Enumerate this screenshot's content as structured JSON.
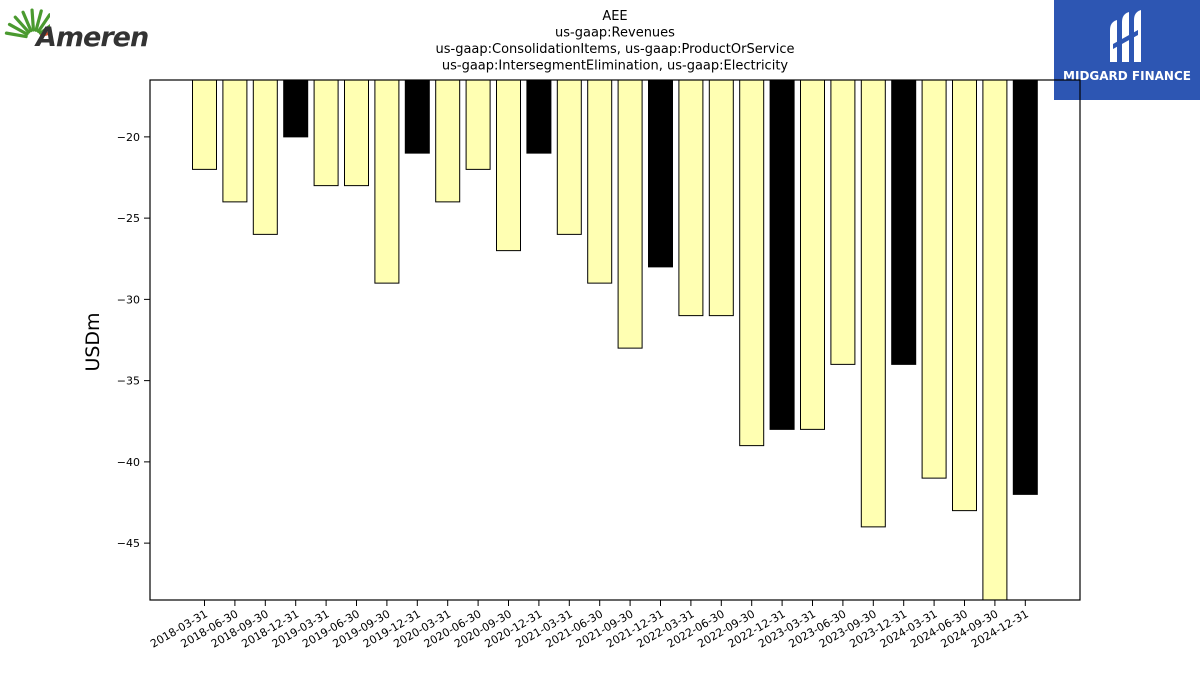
{
  "brand": {
    "company_logo": {
      "name": "Ameren",
      "icon": "ameren-sunburst-icon",
      "accent": "#4a9a2f"
    },
    "publisher_logo": {
      "name": "MIDGARD FINANCE",
      "icon": "midgard-mark-icon",
      "background": "#2d56b3"
    }
  },
  "chart_data": {
    "type": "bar",
    "title_lines": [
      "AEE",
      "us-gaap:Revenues",
      "us-gaap:ConsolidationItems, us-gaap:ProductOrService",
      "us-gaap:IntersegmentElimination, us-gaap:Electricity"
    ],
    "xlabel": "",
    "ylabel": "USDm",
    "ylim": [
      -48.5,
      -16.5
    ],
    "yticks": [
      -20,
      -25,
      -30,
      -35,
      -40,
      -45
    ],
    "grid": false,
    "legend": "none",
    "colors": {
      "quarter": "#ffffb2",
      "year_end": "#000000",
      "edge": "#000000"
    },
    "categories": [
      "2018-03-31",
      "2018-06-30",
      "2018-09-30",
      "2018-12-31",
      "2019-03-31",
      "2019-06-30",
      "2019-09-30",
      "2019-12-31",
      "2020-03-31",
      "2020-06-30",
      "2020-09-30",
      "2020-12-31",
      "2021-03-31",
      "2021-06-30",
      "2021-09-30",
      "2021-12-31",
      "2022-03-31",
      "2022-06-30",
      "2022-09-30",
      "2022-12-31",
      "2023-03-31",
      "2023-06-30",
      "2023-09-30",
      "2023-12-31",
      "2024-03-31",
      "2024-06-30",
      "2024-09-30",
      "2024-12-31"
    ],
    "values": [
      -22,
      -24,
      -26,
      -20,
      -23,
      -23,
      -29,
      -21,
      -24,
      -22,
      -27,
      -21,
      -26,
      -29,
      -33,
      -28,
      -31,
      -31,
      -39,
      -38,
      -38,
      -34,
      -44,
      -34,
      -41,
      -43,
      -49,
      -42
    ]
  }
}
